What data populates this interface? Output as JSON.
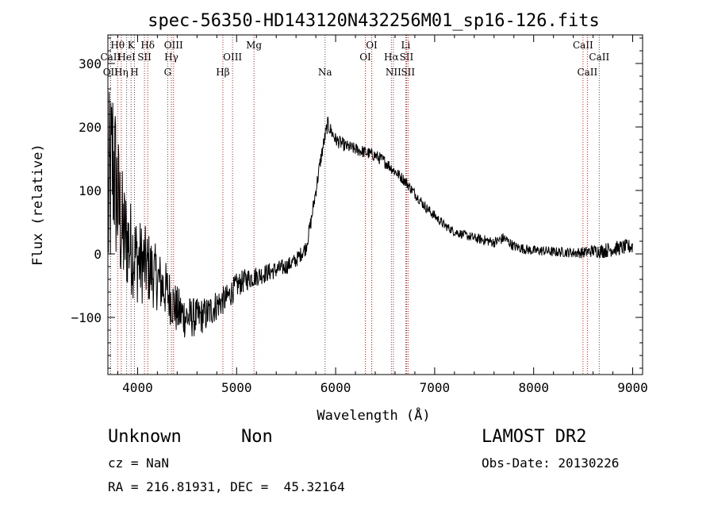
{
  "chart_data": {
    "type": "line",
    "title": "spec-56350-HD143120N432256M01_sp16-126.fits",
    "xlabel": "Wavelength (Å)",
    "ylabel": "Flux (relative)",
    "xlim": [
      3700,
      9100
    ],
    "ylim": [
      -190,
      345
    ],
    "xticks": [
      4000,
      5000,
      6000,
      7000,
      8000,
      9000
    ],
    "xtick_labels": [
      "4000",
      "5000",
      "6000",
      "7000",
      "8000",
      "9000"
    ],
    "yticks": [
      -100,
      0,
      100,
      200,
      300
    ],
    "ytick_labels": [
      "−100",
      "0",
      "100",
      "200",
      "300"
    ],
    "grid": false,
    "spectrum_envelope": {
      "wavelength": [
        3700,
        3750,
        3800,
        3850,
        3900,
        4000,
        4100,
        4200,
        4300,
        4400,
        4500,
        4600,
        4700,
        4800,
        4900,
        5000,
        5100,
        5200,
        5300,
        5400,
        5500,
        5600,
        5700,
        5750,
        5800,
        5850,
        5900,
        5920,
        5950,
        6000,
        6100,
        6200,
        6300,
        6400,
        6500,
        6600,
        6700,
        6800,
        6900,
        7000,
        7100,
        7200,
        7300,
        7400,
        7500,
        7600,
        7700,
        7800,
        7900,
        8000,
        8100,
        8200,
        8300,
        8400,
        8500,
        8600,
        8700,
        8800,
        8900,
        9000
      ],
      "flux": [
        60,
        150,
        80,
        30,
        20,
        -10,
        -20,
        -40,
        -60,
        -90,
        -100,
        -100,
        -95,
        -80,
        -70,
        -50,
        -40,
        -35,
        -30,
        -25,
        -20,
        -10,
        10,
        50,
        100,
        150,
        190,
        205,
        195,
        180,
        170,
        165,
        160,
        155,
        145,
        130,
        115,
        95,
        75,
        60,
        45,
        35,
        30,
        25,
        22,
        18,
        25,
        12,
        8,
        5,
        5,
        3,
        3,
        2,
        2,
        5,
        5,
        8,
        10,
        12
      ],
      "noise_amplitude": [
        180,
        150,
        120,
        100,
        80,
        70,
        60,
        50,
        45,
        40,
        35,
        30,
        28,
        25,
        22,
        20,
        18,
        16,
        15,
        14,
        13,
        12,
        12,
        12,
        12,
        12,
        12,
        12,
        12,
        11,
        10,
        10,
        10,
        10,
        10,
        9,
        9,
        8,
        8,
        8,
        7,
        7,
        7,
        8,
        8,
        8,
        9,
        8,
        8,
        8,
        8,
        8,
        8,
        8,
        9,
        10,
        12,
        12,
        12,
        12
      ]
    },
    "line_markers": [
      {
        "label": "Hθ",
        "wavelength": 3798,
        "row": 1
      },
      {
        "label": "CaII",
        "wavelength": 3727,
        "row": 2
      },
      {
        "label": "OII",
        "wavelength": 3727,
        "row": 3
      },
      {
        "label": "Hη",
        "wavelength": 3835,
        "row": 3
      },
      {
        "label": "HeI",
        "wavelength": 3889,
        "row": 2
      },
      {
        "label": "K",
        "wavelength": 3934,
        "row": 1
      },
      {
        "label": "H",
        "wavelength": 3968,
        "row": 3
      },
      {
        "label": "SII",
        "wavelength": 4069,
        "row": 2
      },
      {
        "label": "Hδ",
        "wavelength": 4102,
        "row": 1
      },
      {
        "label": "OIII",
        "wavelength": 4363,
        "row": 1
      },
      {
        "label": "Hγ",
        "wavelength": 4341,
        "row": 2
      },
      {
        "label": "G",
        "wavelength": 4304,
        "row": 3
      },
      {
        "label": "OIII",
        "wavelength": 4959,
        "row": 2
      },
      {
        "label": "Hβ",
        "wavelength": 4861,
        "row": 3
      },
      {
        "label": "Mg",
        "wavelength": 5175,
        "row": 1
      },
      {
        "label": "Na",
        "wavelength": 5893,
        "row": 3
      },
      {
        "label": "OI",
        "wavelength": 6300,
        "row": 2
      },
      {
        "label": "OI",
        "wavelength": 6364,
        "row": 1
      },
      {
        "label": "Hα",
        "wavelength": 6563,
        "row": 2
      },
      {
        "label": "NII",
        "wavelength": 6583,
        "row": 3
      },
      {
        "label": "Li",
        "wavelength": 6708,
        "row": 1
      },
      {
        "label": "SII",
        "wavelength": 6716,
        "row": 2
      },
      {
        "label": "SII",
        "wavelength": 6731,
        "row": 3
      },
      {
        "label": "CaII",
        "wavelength": 8498,
        "row": 1
      },
      {
        "label": "CaII",
        "wavelength": 8542,
        "row": 3
      },
      {
        "label": "CaII",
        "wavelength": 8662,
        "row": 2
      }
    ]
  },
  "info": {
    "object_class": "Unknown",
    "subclass": "Non",
    "cz": "cz = NaN",
    "coords": "RA = 216.81931, DEC =  45.32164",
    "survey": "LAMOST DR2",
    "obs_date": "Obs-Date: 20130226"
  }
}
